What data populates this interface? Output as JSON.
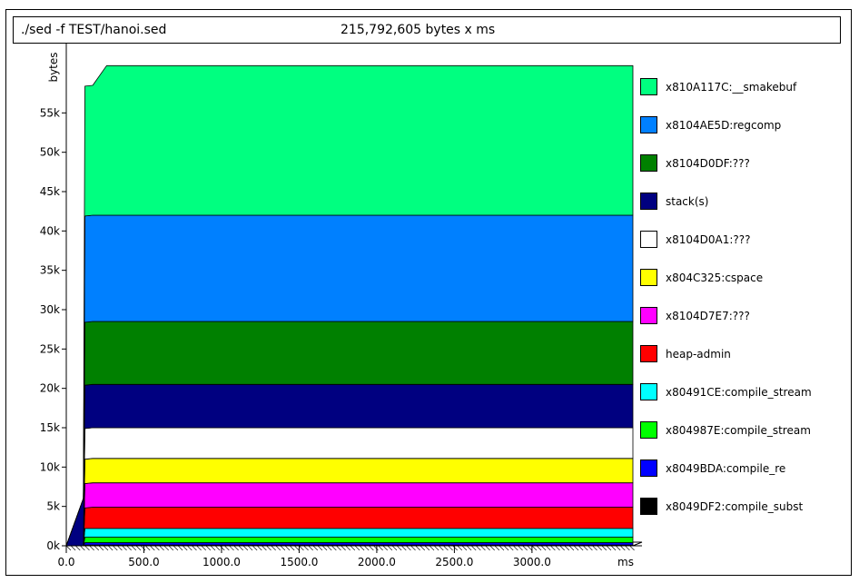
{
  "header": {
    "command": "./sed -f TEST/hanoi.sed",
    "total": "215,792,605 bytes x ms"
  },
  "chart_data": {
    "type": "area",
    "stacked": true,
    "x_unit_label": "ms",
    "y_unit_label": "bytes",
    "xlim": [
      0,
      3650
    ],
    "ylim": [
      0,
      63000
    ],
    "x_ticks": [
      0,
      500,
      1000,
      1500,
      2000,
      2500,
      3000
    ],
    "x_tick_labels": [
      "0.0",
      "500.0",
      "1000.0",
      "1500.0",
      "2000.0",
      "2500.0",
      "3000.0"
    ],
    "y_ticks": [
      0,
      5000,
      10000,
      15000,
      20000,
      25000,
      30000,
      35000,
      40000,
      45000,
      50000,
      55000
    ],
    "y_tick_labels": [
      "0k",
      "5k",
      "10k",
      "15k",
      "20k",
      "25k",
      "30k",
      "35k",
      "40k",
      "45k",
      "50k",
      "55k"
    ],
    "x": [
      0,
      110,
      120,
      170,
      260,
      3650
    ],
    "series": [
      {
        "name": "x8049DF2:compile_subst",
        "color": "#000000",
        "values": [
          0,
          0,
          100,
          100,
          100,
          100
        ]
      },
      {
        "name": "x8049BDA:compile_re",
        "color": "#0000ff",
        "values": [
          0,
          0,
          300,
          300,
          300,
          300
        ]
      },
      {
        "name": "x804987E:compile_stream",
        "color": "#00ff00",
        "values": [
          0,
          0,
          700,
          700,
          700,
          700
        ]
      },
      {
        "name": "x80491CE:compile_stream",
        "color": "#00ffff",
        "values": [
          0,
          0,
          1100,
          1100,
          1100,
          1100
        ]
      },
      {
        "name": "heap-admin",
        "color": "#ff0000",
        "values": [
          0,
          0,
          2600,
          2700,
          2700,
          2700
        ]
      },
      {
        "name": "x8104D7E7:???",
        "color": "#ff00ff",
        "values": [
          0,
          0,
          3100,
          3100,
          3100,
          3100
        ]
      },
      {
        "name": "x804C325:cspace",
        "color": "#ffff00",
        "values": [
          0,
          0,
          3100,
          3100,
          3100,
          3100
        ]
      },
      {
        "name": "x8104D0A1:???",
        "color": "#ffffff",
        "values": [
          0,
          0,
          3900,
          3900,
          3900,
          3900
        ]
      },
      {
        "name": "stack(s)",
        "color": "#000080",
        "values": [
          0,
          6000,
          5500,
          5500,
          5500,
          5500
        ]
      },
      {
        "name": "x8104D0DF:???",
        "color": "#008000",
        "values": [
          0,
          0,
          8000,
          8000,
          8000,
          8000
        ]
      },
      {
        "name": "x8104AE5D:regcomp",
        "color": "#0080ff",
        "values": [
          0,
          0,
          13500,
          13500,
          13500,
          13500
        ]
      },
      {
        "name": "x810A117C:__smakebuf",
        "color": "#00ff80",
        "values": [
          0,
          0,
          16500,
          16500,
          19000,
          19000
        ]
      }
    ]
  }
}
